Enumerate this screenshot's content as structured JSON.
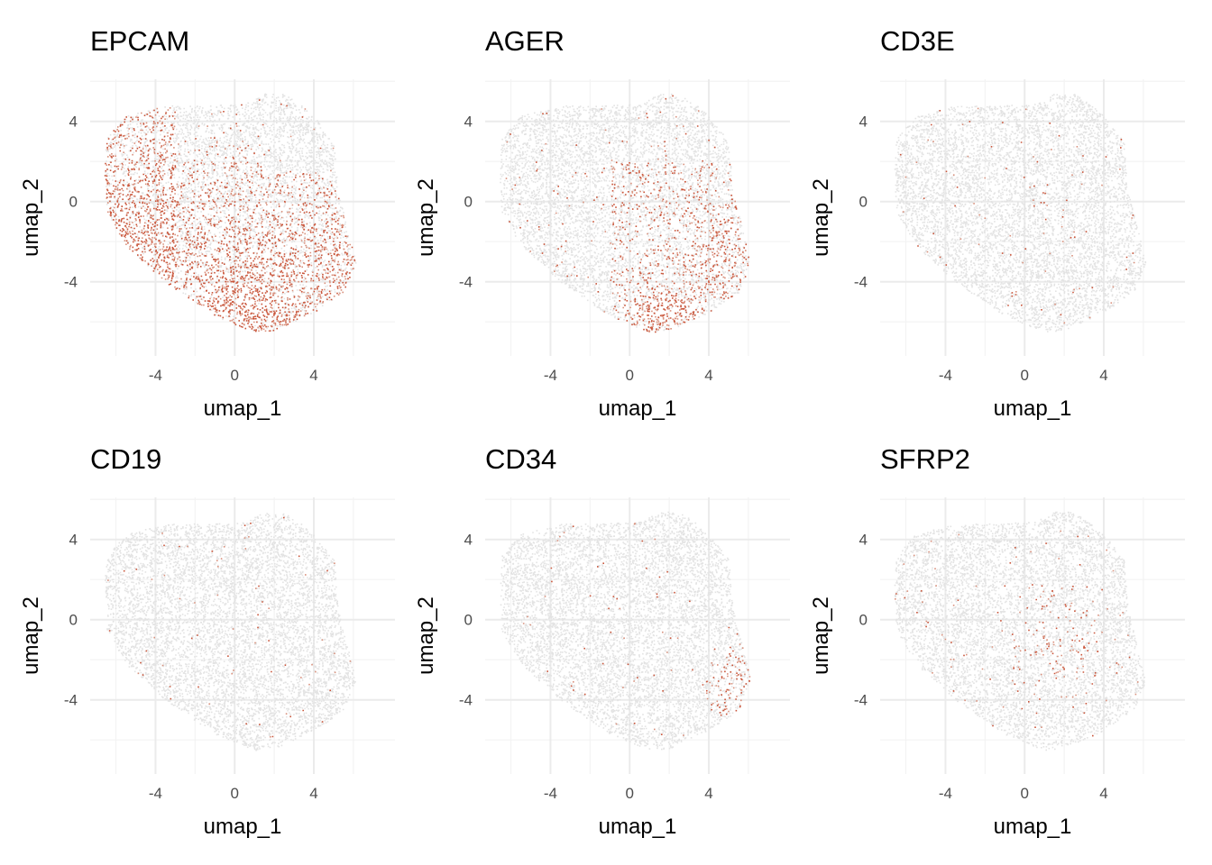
{
  "chart_data": [
    {
      "type": "scatter",
      "title": "EPCAM",
      "xlabel": "umap_1",
      "ylabel": "umap_2",
      "xlim": [
        -7.3,
        8.1
      ],
      "ylim": [
        -7.7,
        6.1
      ],
      "xticks": [
        -4,
        0,
        4
      ],
      "yticks": [
        -4,
        0,
        4
      ],
      "grid": true,
      "legend": "none",
      "expression_pattern": "broad",
      "colors": {
        "low": "#e3e3e3",
        "high": "#c9553a"
      }
    },
    {
      "type": "scatter",
      "title": "AGER",
      "xlabel": "umap_1",
      "ylabel": "umap_2",
      "xlim": [
        -7.3,
        8.1
      ],
      "ylim": [
        -7.7,
        6.1
      ],
      "xticks": [
        -4,
        0,
        4
      ],
      "yticks": [
        -4,
        0,
        4
      ],
      "grid": true,
      "legend": "none",
      "expression_pattern": "bottom-right",
      "colors": {
        "low": "#e3e3e3",
        "high": "#c9553a"
      }
    },
    {
      "type": "scatter",
      "title": "CD3E",
      "xlabel": "umap_1",
      "ylabel": "umap_2",
      "xlim": [
        -7.3,
        8.1
      ],
      "ylim": [
        -7.7,
        6.1
      ],
      "xticks": [
        -4,
        0,
        4
      ],
      "yticks": [
        -4,
        0,
        4
      ],
      "grid": true,
      "legend": "none",
      "expression_pattern": "sparse",
      "colors": {
        "low": "#e3e3e3",
        "high": "#c9553a"
      }
    },
    {
      "type": "scatter",
      "title": "CD19",
      "xlabel": "umap_1",
      "ylabel": "umap_2",
      "xlim": [
        -7.3,
        8.1
      ],
      "ylim": [
        -7.7,
        6.1
      ],
      "xticks": [
        -4,
        0,
        4
      ],
      "yticks": [
        -4,
        0,
        4
      ],
      "grid": true,
      "legend": "none",
      "expression_pattern": "sparse",
      "colors": {
        "low": "#e3e3e3",
        "high": "#c9553a"
      }
    },
    {
      "type": "scatter",
      "title": "CD34",
      "xlabel": "umap_1",
      "ylabel": "umap_2",
      "xlim": [
        -7.3,
        8.1
      ],
      "ylim": [
        -7.7,
        6.1
      ],
      "xticks": [
        -4,
        0,
        4
      ],
      "yticks": [
        -4,
        0,
        4
      ],
      "grid": true,
      "legend": "none",
      "expression_pattern": "right-edge",
      "colors": {
        "low": "#e3e3e3",
        "high": "#c9553a"
      }
    },
    {
      "type": "scatter",
      "title": "SFRP2",
      "xlabel": "umap_1",
      "ylabel": "umap_2",
      "xlim": [
        -7.3,
        8.1
      ],
      "ylim": [
        -7.7,
        6.1
      ],
      "xticks": [
        -4,
        0,
        4
      ],
      "yticks": [
        -4,
        0,
        4
      ],
      "grid": true,
      "legend": "none",
      "expression_pattern": "center-right",
      "colors": {
        "low": "#e3e3e3",
        "high": "#c9553a"
      }
    }
  ]
}
